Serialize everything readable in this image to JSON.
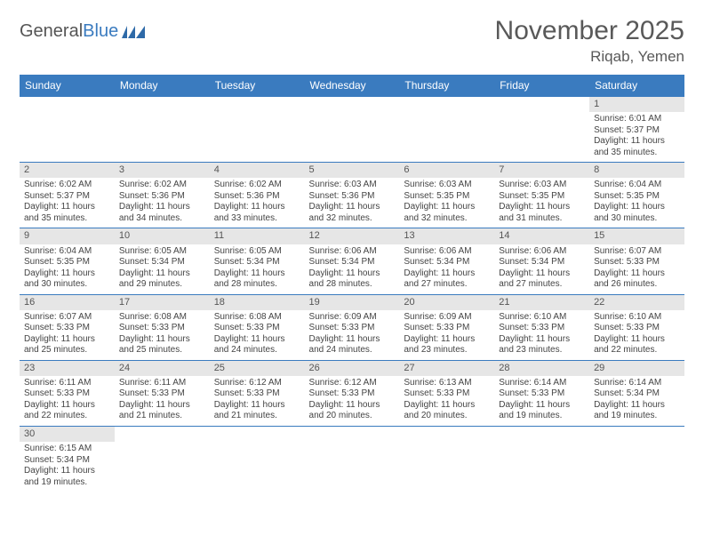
{
  "logo": {
    "text1": "General",
    "text2": "Blue"
  },
  "title": "November 2025",
  "location": "Riqab, Yemen",
  "colors": {
    "header_bg": "#3a7bbf",
    "header_fg": "#ffffff",
    "daynum_bg": "#e6e6e6",
    "border": "#3a7bbf",
    "text": "#444444",
    "title_color": "#595959"
  },
  "weekdays": [
    "Sunday",
    "Monday",
    "Tuesday",
    "Wednesday",
    "Thursday",
    "Friday",
    "Saturday"
  ],
  "first_weekday_index": 6,
  "days": [
    {
      "n": 1,
      "sunrise": "6:01 AM",
      "sunset": "5:37 PM",
      "dl_h": 11,
      "dl_m": 35
    },
    {
      "n": 2,
      "sunrise": "6:02 AM",
      "sunset": "5:37 PM",
      "dl_h": 11,
      "dl_m": 35
    },
    {
      "n": 3,
      "sunrise": "6:02 AM",
      "sunset": "5:36 PM",
      "dl_h": 11,
      "dl_m": 34
    },
    {
      "n": 4,
      "sunrise": "6:02 AM",
      "sunset": "5:36 PM",
      "dl_h": 11,
      "dl_m": 33
    },
    {
      "n": 5,
      "sunrise": "6:03 AM",
      "sunset": "5:36 PM",
      "dl_h": 11,
      "dl_m": 32
    },
    {
      "n": 6,
      "sunrise": "6:03 AM",
      "sunset": "5:35 PM",
      "dl_h": 11,
      "dl_m": 32
    },
    {
      "n": 7,
      "sunrise": "6:03 AM",
      "sunset": "5:35 PM",
      "dl_h": 11,
      "dl_m": 31
    },
    {
      "n": 8,
      "sunrise": "6:04 AM",
      "sunset": "5:35 PM",
      "dl_h": 11,
      "dl_m": 30
    },
    {
      "n": 9,
      "sunrise": "6:04 AM",
      "sunset": "5:35 PM",
      "dl_h": 11,
      "dl_m": 30
    },
    {
      "n": 10,
      "sunrise": "6:05 AM",
      "sunset": "5:34 PM",
      "dl_h": 11,
      "dl_m": 29
    },
    {
      "n": 11,
      "sunrise": "6:05 AM",
      "sunset": "5:34 PM",
      "dl_h": 11,
      "dl_m": 28
    },
    {
      "n": 12,
      "sunrise": "6:06 AM",
      "sunset": "5:34 PM",
      "dl_h": 11,
      "dl_m": 28
    },
    {
      "n": 13,
      "sunrise": "6:06 AM",
      "sunset": "5:34 PM",
      "dl_h": 11,
      "dl_m": 27
    },
    {
      "n": 14,
      "sunrise": "6:06 AM",
      "sunset": "5:34 PM",
      "dl_h": 11,
      "dl_m": 27
    },
    {
      "n": 15,
      "sunrise": "6:07 AM",
      "sunset": "5:33 PM",
      "dl_h": 11,
      "dl_m": 26
    },
    {
      "n": 16,
      "sunrise": "6:07 AM",
      "sunset": "5:33 PM",
      "dl_h": 11,
      "dl_m": 25
    },
    {
      "n": 17,
      "sunrise": "6:08 AM",
      "sunset": "5:33 PM",
      "dl_h": 11,
      "dl_m": 25
    },
    {
      "n": 18,
      "sunrise": "6:08 AM",
      "sunset": "5:33 PM",
      "dl_h": 11,
      "dl_m": 24
    },
    {
      "n": 19,
      "sunrise": "6:09 AM",
      "sunset": "5:33 PM",
      "dl_h": 11,
      "dl_m": 24
    },
    {
      "n": 20,
      "sunrise": "6:09 AM",
      "sunset": "5:33 PM",
      "dl_h": 11,
      "dl_m": 23
    },
    {
      "n": 21,
      "sunrise": "6:10 AM",
      "sunset": "5:33 PM",
      "dl_h": 11,
      "dl_m": 23
    },
    {
      "n": 22,
      "sunrise": "6:10 AM",
      "sunset": "5:33 PM",
      "dl_h": 11,
      "dl_m": 22
    },
    {
      "n": 23,
      "sunrise": "6:11 AM",
      "sunset": "5:33 PM",
      "dl_h": 11,
      "dl_m": 22
    },
    {
      "n": 24,
      "sunrise": "6:11 AM",
      "sunset": "5:33 PM",
      "dl_h": 11,
      "dl_m": 21
    },
    {
      "n": 25,
      "sunrise": "6:12 AM",
      "sunset": "5:33 PM",
      "dl_h": 11,
      "dl_m": 21
    },
    {
      "n": 26,
      "sunrise": "6:12 AM",
      "sunset": "5:33 PM",
      "dl_h": 11,
      "dl_m": 20
    },
    {
      "n": 27,
      "sunrise": "6:13 AM",
      "sunset": "5:33 PM",
      "dl_h": 11,
      "dl_m": 20
    },
    {
      "n": 28,
      "sunrise": "6:14 AM",
      "sunset": "5:33 PM",
      "dl_h": 11,
      "dl_m": 19
    },
    {
      "n": 29,
      "sunrise": "6:14 AM",
      "sunset": "5:34 PM",
      "dl_h": 11,
      "dl_m": 19
    },
    {
      "n": 30,
      "sunrise": "6:15 AM",
      "sunset": "5:34 PM",
      "dl_h": 11,
      "dl_m": 19
    }
  ],
  "labels": {
    "sunrise": "Sunrise:",
    "sunset": "Sunset:",
    "daylight": "Daylight:",
    "hours": "hours",
    "and": "and",
    "minutes": "minutes."
  }
}
